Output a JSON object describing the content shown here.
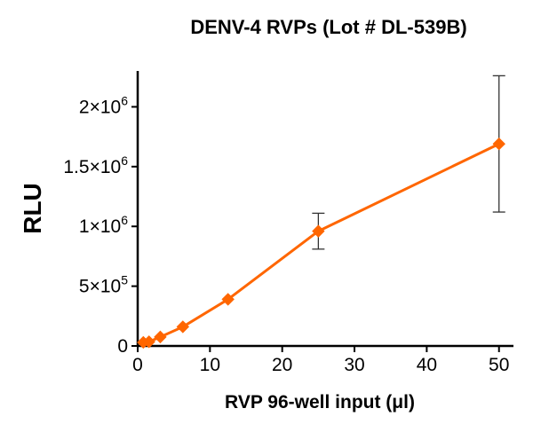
{
  "chart_data": {
    "type": "line",
    "title": "DENV-4 RVPs (Lot # DL-539B)",
    "xlabel": "RVP 96-well input (μl)",
    "ylabel": "RLU",
    "xlim": [
      0,
      52
    ],
    "ylim": [
      0,
      2300000
    ],
    "x_ticks": [
      0,
      10,
      20,
      30,
      40,
      50
    ],
    "x_tick_labels": [
      "0",
      "10",
      "20",
      "30",
      "40",
      "50"
    ],
    "y_ticks": [
      {
        "value": 0,
        "mantissa": "0",
        "exp": ""
      },
      {
        "value": 500000,
        "mantissa": "5×10",
        "exp": "5"
      },
      {
        "value": 1000000,
        "mantissa": "1×10",
        "exp": "6"
      },
      {
        "value": 1500000,
        "mantissa": "1.5×10",
        "exp": "6"
      },
      {
        "value": 2000000,
        "mantissa": "2×10",
        "exp": "6"
      }
    ],
    "grid": false,
    "legend": "none",
    "series": [
      {
        "color": "#ff6600",
        "marker": "diamond",
        "points": [
          {
            "x": 0.78,
            "y": 30000,
            "err": 0
          },
          {
            "x": 1.56,
            "y": 35000,
            "err": 0
          },
          {
            "x": 3.125,
            "y": 75000,
            "err": 0
          },
          {
            "x": 6.25,
            "y": 160000,
            "err": 0
          },
          {
            "x": 12.5,
            "y": 390000,
            "err": 0
          },
          {
            "x": 25,
            "y": 960000,
            "err": 150000
          },
          {
            "x": 50,
            "y": 1690000,
            "err": 570000
          }
        ]
      }
    ]
  }
}
